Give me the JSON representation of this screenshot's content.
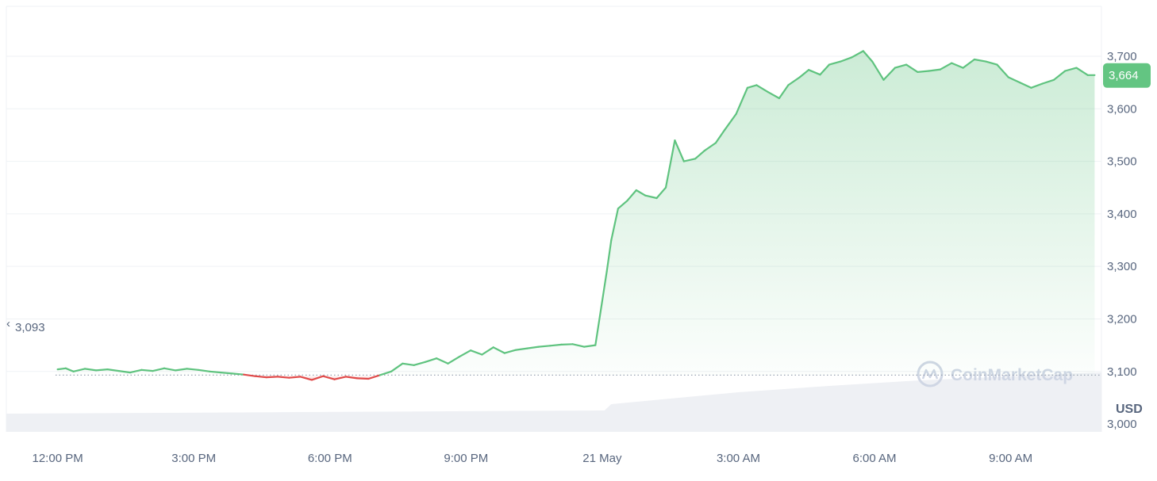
{
  "watermark": {
    "text": "CoinMarketCap"
  },
  "colors": {
    "up": "#5fc37f",
    "down": "#e04a4a",
    "badge": "#63c582",
    "grid": "#eff2f5",
    "axis_text": "#58667e",
    "volume": "#eef0f4",
    "reference_line": "#9aa3b2"
  },
  "chart_data": {
    "type": "area",
    "title": "",
    "xlabel": "",
    "ylabel": "",
    "unit": "USD",
    "x_ticks": [
      "12:00 PM",
      "3:00 PM",
      "6:00 PM",
      "9:00 PM",
      "21 May",
      "3:00 AM",
      "6:00 AM",
      "9:00 AM"
    ],
    "y_ticks": [
      "3,000",
      "3,100",
      "3,200",
      "3,300",
      "3,400",
      "3,500",
      "3,600",
      "3,700"
    ],
    "ylim": [
      2985,
      3795
    ],
    "x_range_hours": [
      -1.13,
      23.0
    ],
    "reference": {
      "value": 3093,
      "label": "3,093"
    },
    "last_price": {
      "value": 3664,
      "label": "3,664"
    },
    "series": [
      {
        "x_hours": [
          0.0,
          0.18,
          0.35,
          0.6,
          0.85,
          1.1,
          1.35,
          1.6,
          1.85,
          2.1,
          2.35,
          2.6,
          2.85,
          3.1,
          3.35,
          3.6,
          3.85,
          4.1,
          4.35,
          4.6,
          4.85,
          5.1,
          5.35,
          5.6,
          5.85,
          6.1,
          6.35,
          6.6,
          6.85,
          7.1,
          7.35,
          7.6,
          7.85,
          8.1,
          8.35,
          8.6,
          8.85,
          9.1,
          9.35,
          9.6,
          9.85,
          10.1,
          10.35,
          10.6,
          10.85,
          11.1,
          11.35,
          11.6,
          11.85,
          12.1,
          12.2,
          12.35,
          12.55,
          12.75,
          12.95,
          13.2,
          13.4,
          13.6,
          13.8,
          14.05,
          14.25,
          14.5,
          14.7,
          14.95,
          15.2,
          15.4,
          15.65,
          15.9,
          16.1,
          16.35,
          16.55,
          16.8,
          17.0,
          17.25,
          17.5,
          17.75,
          17.95,
          18.2,
          18.45,
          18.7,
          18.95,
          19.2,
          19.45,
          19.7,
          19.95,
          20.2,
          20.45,
          20.7,
          20.95,
          21.2,
          21.45,
          21.7,
          21.95,
          22.2,
          22.45,
          22.7,
          22.85
        ],
        "values": [
          3104,
          3106,
          3100,
          3105,
          3102,
          3104,
          3101,
          3098,
          3103,
          3101,
          3106,
          3102,
          3105,
          3103,
          3100,
          3098,
          3096,
          3094,
          3091,
          3089,
          3090,
          3088,
          3090,
          3084,
          3091,
          3085,
          3090,
          3087,
          3086,
          3093,
          3100,
          3115,
          3112,
          3118,
          3125,
          3115,
          3128,
          3140,
          3132,
          3146,
          3135,
          3141,
          3144,
          3147,
          3149,
          3151,
          3152,
          3147,
          3150,
          3290,
          3350,
          3410,
          3425,
          3445,
          3435,
          3430,
          3450,
          3540,
          3500,
          3505,
          3520,
          3535,
          3560,
          3590,
          3640,
          3645,
          3632,
          3620,
          3645,
          3660,
          3674,
          3665,
          3684,
          3690,
          3698,
          3710,
          3690,
          3655,
          3678,
          3684,
          3670,
          3672,
          3675,
          3687,
          3678,
          3694,
          3690,
          3684,
          3660,
          3650,
          3640,
          3648,
          3655,
          3672,
          3678,
          3664,
          3664
        ]
      }
    ]
  }
}
